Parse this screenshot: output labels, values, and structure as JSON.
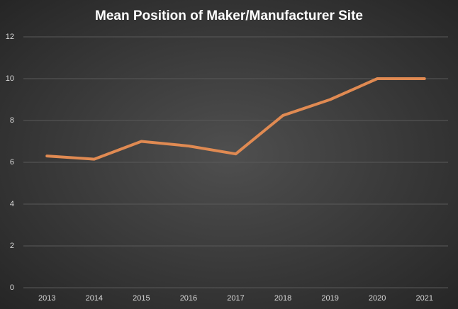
{
  "chart_data": {
    "type": "line",
    "title": "Mean Position of Maker/Manufacturer Site",
    "categories": [
      "2013",
      "2014",
      "2015",
      "2016",
      "2017",
      "2018",
      "2019",
      "2020",
      "2021"
    ],
    "values": [
      6.3,
      6.15,
      7.0,
      6.78,
      6.4,
      8.24,
      9.0,
      10.0,
      10.0
    ],
    "color": "#e08a52",
    "ylim": [
      0,
      12
    ],
    "yticks": [
      0,
      2,
      4,
      6,
      8,
      10,
      12
    ],
    "grid": true
  }
}
